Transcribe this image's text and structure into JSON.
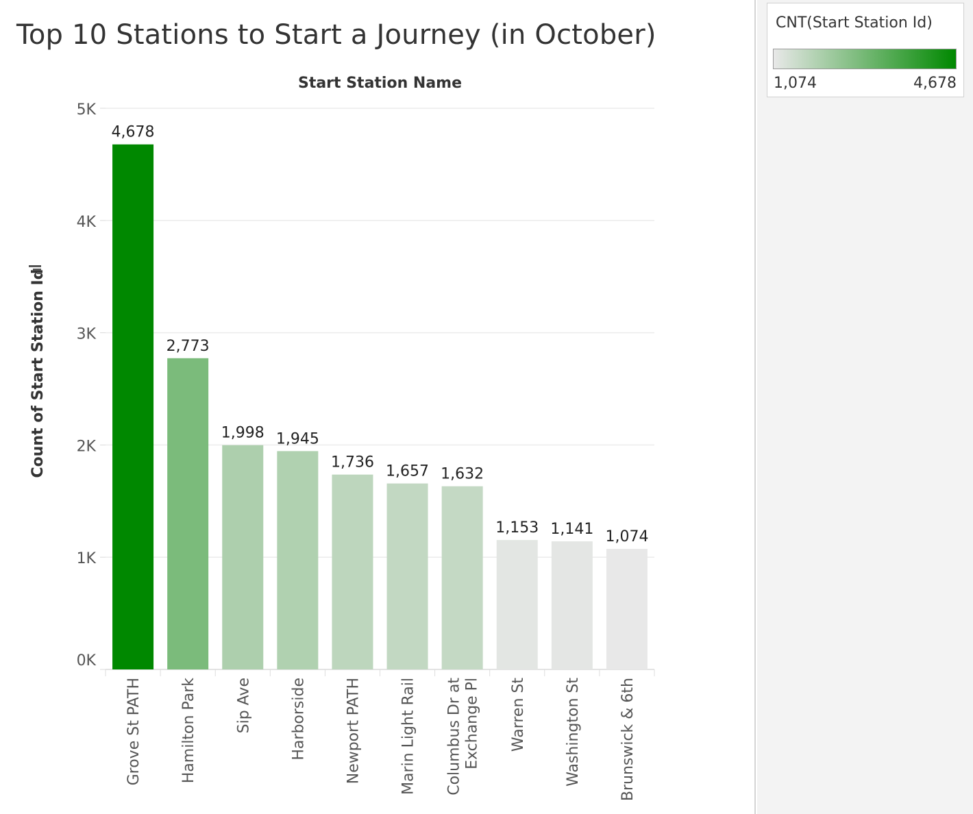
{
  "chart_data": {
    "type": "bar",
    "title": "Top 10 Stations to Start a Journey (in October)",
    "column_header": "Start Station Name",
    "ylabel": "Count of Start Station Id",
    "ylim": [
      0,
      5000
    ],
    "yticks": [
      0,
      1000,
      2000,
      3000,
      4000,
      5000
    ],
    "ytick_labels": [
      "0K",
      "1K",
      "2K",
      "3K",
      "4K",
      "5K"
    ],
    "grid": true,
    "categories": [
      [
        "Grove St PATH"
      ],
      [
        "Hamilton Park"
      ],
      [
        "Sip Ave"
      ],
      [
        "Harborside"
      ],
      [
        "Newport PATH"
      ],
      [
        "Marin Light Rail"
      ],
      [
        "Columbus Dr at",
        "Exchange Pl"
      ],
      [
        "Warren St"
      ],
      [
        "Washington St"
      ],
      [
        "Brunswick & 6th"
      ]
    ],
    "values": [
      4678,
      2773,
      1998,
      1945,
      1736,
      1657,
      1632,
      1153,
      1141,
      1074
    ],
    "value_labels": [
      "4,678",
      "2,773",
      "1,998",
      "1,945",
      "1,736",
      "1,657",
      "1,632",
      "1,153",
      "1,141",
      "1,074"
    ],
    "color_encoding": {
      "field": "CNT(Start Station Id)",
      "min": 1074,
      "max": 4678,
      "min_label": "1,074",
      "max_label": "4,678",
      "min_color": "#e8e8e8",
      "max_color": "#008800"
    },
    "legend_position": "top-right"
  },
  "legend": {
    "title": "CNT(Start Station Id)",
    "min_label": "1,074",
    "max_label": "4,678"
  }
}
